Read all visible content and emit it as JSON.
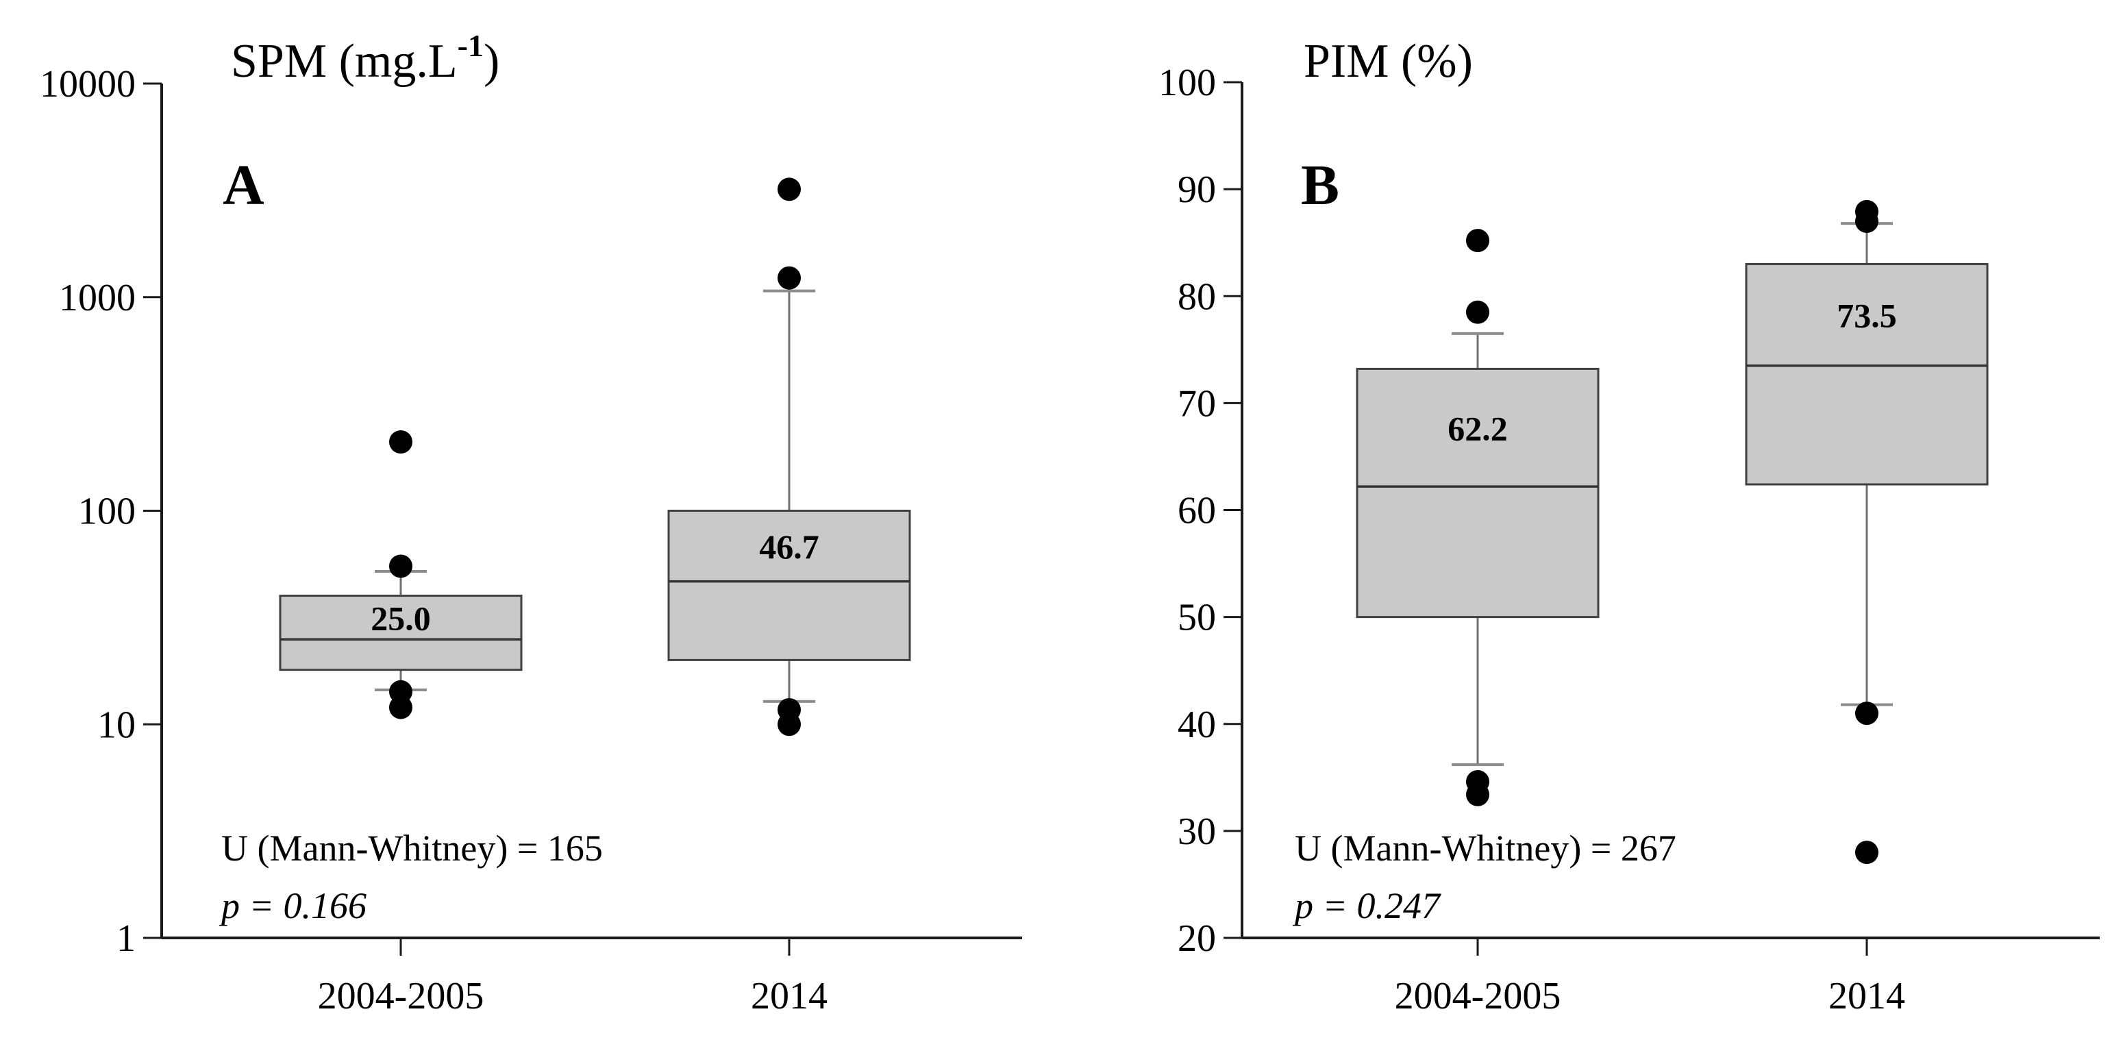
{
  "figure": {
    "background": "#ffffff",
    "description_panels": [
      "A",
      "B"
    ]
  },
  "chart_data": [
    {
      "type": "boxplot",
      "panel_label": "A",
      "title_parts": {
        "main": "SPM (mg.L",
        "superscript": "-1",
        "close": ")"
      },
      "y_axis": {
        "scale": "log",
        "min": 1,
        "max": 10000,
        "ticks": [
          10000,
          1000,
          100,
          10,
          1
        ],
        "tick_labels": [
          "10000",
          "1000",
          "100",
          "10",
          "1"
        ]
      },
      "x_categories": [
        "2004-2005",
        "2014"
      ],
      "stats": {
        "u_label": "U (Mann-Whitney) = 165",
        "p_label": "p = 0.166"
      },
      "boxes": [
        {
          "category": "2004-2005",
          "median": 25.0,
          "median_label": "25.0",
          "q1": 18,
          "q3": 40,
          "whisker_low": 14.5,
          "whisker_high": 52,
          "outliers_high": [
            210,
            55
          ],
          "outliers_low": [
            14.2,
            12.0
          ]
        },
        {
          "category": "2014",
          "median": 46.7,
          "median_label": "46.7",
          "q1": 20,
          "q3": 100,
          "whisker_low": 12.8,
          "whisker_high": 1070,
          "outliers_high": [
            3200,
            1230
          ],
          "outliers_low": [
            11.7,
            10.0
          ]
        }
      ]
    },
    {
      "type": "boxplot",
      "panel_label": "B",
      "title_parts": {
        "main": "PIM (%)",
        "superscript": "",
        "close": ""
      },
      "y_axis": {
        "scale": "linear",
        "min": 20,
        "max": 100,
        "ticks": [
          100,
          90,
          80,
          70,
          60,
          50,
          40,
          30,
          20
        ],
        "tick_labels": [
          "100",
          "90",
          "80",
          "70",
          "60",
          "50",
          "40",
          "30",
          "20"
        ]
      },
      "x_categories": [
        "2004-2005",
        "2014"
      ],
      "stats": {
        "u_label": "U (Mann-Whitney) = 267",
        "p_label": "p = 0.247"
      },
      "boxes": [
        {
          "category": "2004-2005",
          "median": 62.2,
          "median_label": "62.2",
          "q1": 50,
          "q3": 73.2,
          "whisker_low": 36.2,
          "whisker_high": 76.5,
          "outliers_high": [
            85.2,
            78.5
          ],
          "outliers_low": [
            34.6,
            33.4
          ]
        },
        {
          "category": "2014",
          "median": 73.5,
          "median_label": "73.5",
          "q1": 62.4,
          "q3": 83,
          "whisker_low": 41.8,
          "whisker_high": 86.8,
          "outliers_high": [
            87.9,
            87.0
          ],
          "outliers_low": [
            41.0,
            28.0
          ]
        }
      ]
    }
  ],
  "style": {
    "box_fill": "#c9c9c9",
    "box_border": "#404040",
    "median_line": "#333333",
    "whisker_line": "#707070",
    "cap_line": "#8c8c8c",
    "dot_color": "#000000",
    "axis_color": "#1a1a1a",
    "text_color": "#000000"
  }
}
